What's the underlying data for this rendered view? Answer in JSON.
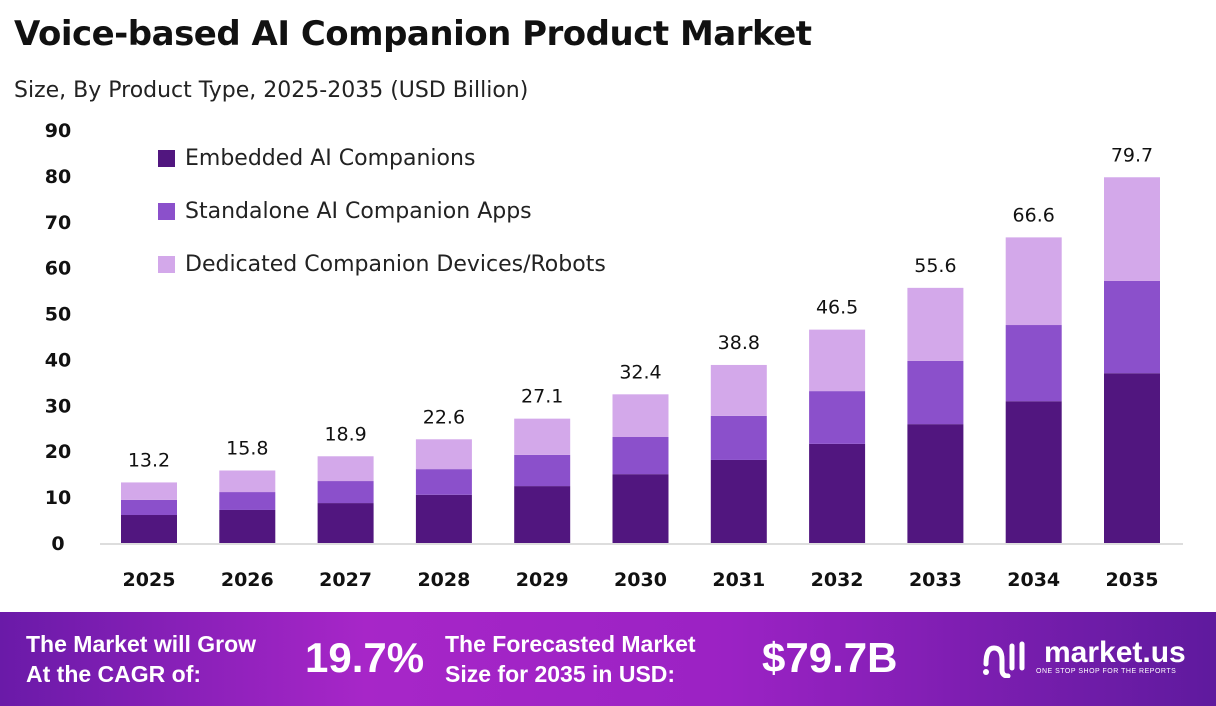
{
  "title": "Voice-based AI Companion Product Market",
  "subtitle": "Size, By Product Type, 2025-2035 (USD Billion)",
  "chart_data": {
    "type": "bar",
    "stacked": true,
    "categories": [
      "2025",
      "2026",
      "2027",
      "2028",
      "2029",
      "2030",
      "2031",
      "2032",
      "2033",
      "2034",
      "2035"
    ],
    "series": [
      {
        "name": "Embedded AI Companions",
        "color": "#51167f",
        "values": [
          6.1,
          7.2,
          8.7,
          10.5,
          12.4,
          15.0,
          18.1,
          21.6,
          25.9,
          30.9,
          37.0
        ]
      },
      {
        "name": "Standalone AI Companion Apps",
        "color": "#8b50cb",
        "values": [
          3.3,
          3.9,
          4.8,
          5.6,
          6.8,
          8.1,
          9.6,
          11.5,
          13.8,
          16.6,
          20.1
        ]
      },
      {
        "name": "Dedicated Companion Devices/Robots",
        "color": "#d3a8ea",
        "values": [
          3.8,
          4.7,
          5.4,
          6.5,
          7.9,
          9.3,
          11.1,
          13.4,
          15.9,
          19.1,
          22.6
        ]
      }
    ],
    "totals": [
      "13.2",
      "15.8",
      "18.9",
      "22.6",
      "27.1",
      "32.4",
      "38.8",
      "46.5",
      "55.6",
      "66.6",
      "79.7"
    ],
    "ylim": [
      0,
      90
    ],
    "yticks": [
      "0",
      "10",
      "20",
      "30",
      "40",
      "50",
      "60",
      "70",
      "80",
      "90"
    ],
    "grid": false,
    "legend": "top-left"
  },
  "footer": {
    "cagr_label_1": "The Market will Grow",
    "cagr_label_2": "At the CAGR of:",
    "cagr_value": "19.7%",
    "forecast_label_1": "The Forecasted Market",
    "forecast_label_2": "Size for 2035 in USD:",
    "forecast_value": "$79.7B",
    "logo_name": "market.us",
    "logo_tagline": "ONE STOP SHOP FOR THE REPORTS"
  }
}
